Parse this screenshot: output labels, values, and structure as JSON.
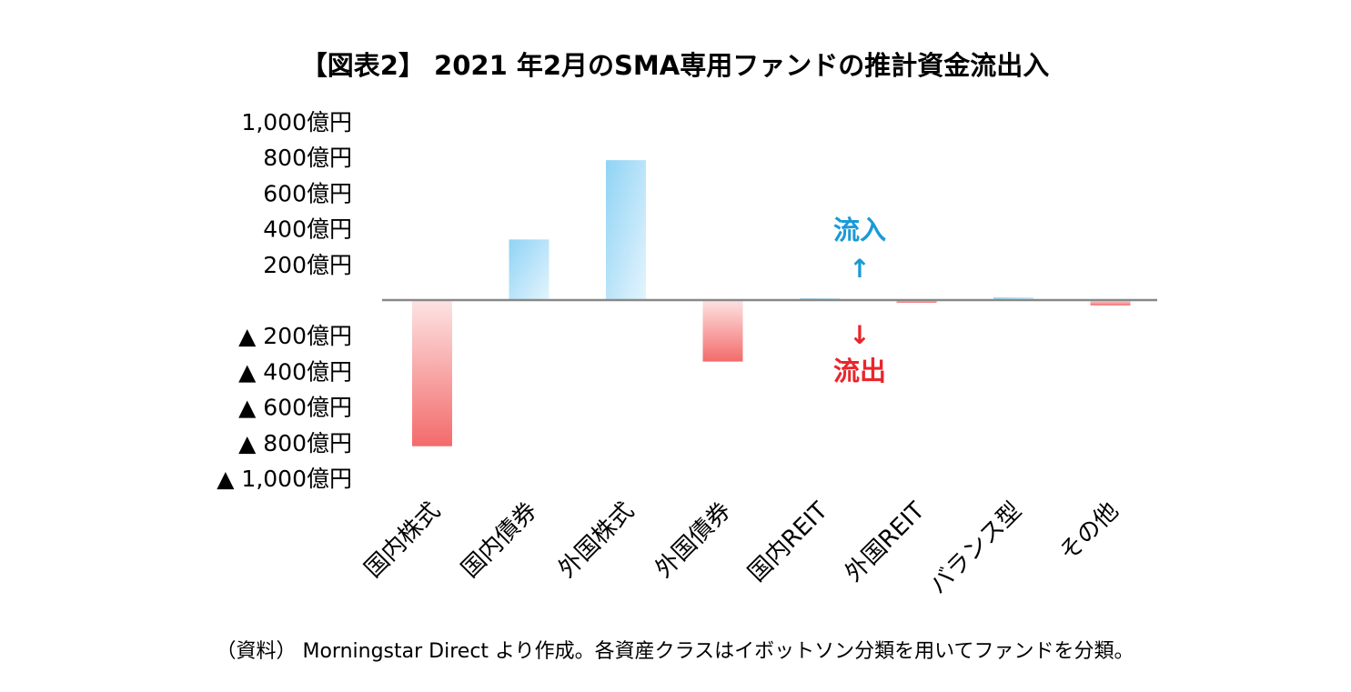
{
  "chart_data": {
    "type": "bar",
    "title": "【図表2】 2021 年2月のSMA専用ファンドの推計資金流出入",
    "categories": [
      "国内株式",
      "国内債券",
      "外国株式",
      "外国債券",
      "国内REIT",
      "外国REIT",
      "バランス型",
      "その他"
    ],
    "values": [
      -820,
      340,
      785,
      -345,
      10,
      -15,
      15,
      -30
    ],
    "unit": "億円",
    "ylim": [
      -1000,
      1000
    ],
    "yticks": [
      1000,
      800,
      600,
      400,
      200,
      -200,
      -400,
      -600,
      -800,
      -1000
    ],
    "ytick_labels": [
      "1,000億円",
      "800億円",
      "600億円",
      "400億円",
      "200億円",
      "▲ 200億円",
      "▲ 400億円",
      "▲ 600億円",
      "▲ 800億円",
      "▲ 1,000億円"
    ],
    "grid": false,
    "annotations": {
      "inflow_label": "流入",
      "inflow_arrow": "↑",
      "outflow_arrow": "↓",
      "outflow_label": "流出"
    },
    "colors": {
      "positive": "#8fd3f5",
      "positive_light": "#e4f4fd",
      "negative": "#f36b6b",
      "negative_light": "#fde3e3",
      "inflow_text": "#1a9ad6",
      "outflow_text": "#e8262b",
      "axis": "#888888"
    }
  },
  "footnote": "（資料） Morningstar Direct より作成。各資産クラスはイボットソン分類を用いてファンドを分類。"
}
